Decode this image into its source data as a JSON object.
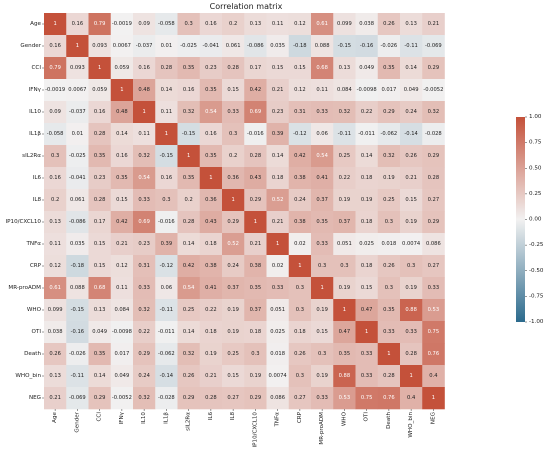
{
  "chart_data": {
    "type": "heatmap",
    "title": "Correlation matrix",
    "labels": [
      "Age",
      "Gender",
      "CCI",
      "IFNγ",
      "IL10",
      "IL1β",
      "sIL2Rα",
      "IL6",
      "IL8",
      "IP10/CXCL10",
      "TNFα",
      "CRP",
      "MR-proADM",
      "WHO",
      "OTI",
      "Death",
      "WHO_bin",
      "NEG"
    ],
    "matrix": [
      [
        "1",
        "0.16",
        "0.79",
        "-0.0019",
        "0.09",
        "-0.058",
        "0.3",
        "0.16",
        "0.2",
        "0.13",
        "0.11",
        "0.12",
        "0.61",
        "0.099",
        "0.038",
        "0.26",
        "0.13",
        "0.21"
      ],
      [
        "0.16",
        "1",
        "0.093",
        "0.0067",
        "-0.037",
        "0.01",
        "-0.025",
        "-0.041",
        "0.061",
        "-0.086",
        "0.035",
        "-0.18",
        "0.088",
        "-0.15",
        "-0.16",
        "-0.026",
        "-0.11",
        "-0.069"
      ],
      [
        "0.79",
        "0.093",
        "1",
        "0.059",
        "0.16",
        "0.28",
        "0.35",
        "0.23",
        "0.28",
        "0.17",
        "0.15",
        "0.15",
        "0.68",
        "0.13",
        "0.049",
        "0.35",
        "0.14",
        "0.29"
      ],
      [
        "-0.0019",
        "0.0067",
        "0.059",
        "1",
        "0.48",
        "0.14",
        "0.16",
        "0.35",
        "0.15",
        "0.42",
        "0.21",
        "0.12",
        "0.11",
        "0.084",
        "-0.0098",
        "0.017",
        "0.049",
        "-0.0052"
      ],
      [
        "0.09",
        "-0.037",
        "0.16",
        "0.48",
        "1",
        "0.11",
        "0.32",
        "0.54",
        "0.33",
        "0.69",
        "0.23",
        "0.31",
        "0.33",
        "0.32",
        "0.22",
        "0.29",
        "0.24",
        "0.32"
      ],
      [
        "-0.058",
        "0.01",
        "0.28",
        "0.14",
        "0.11",
        "1",
        "-0.15",
        "0.16",
        "0.3",
        "-0.016",
        "0.39",
        "-0.12",
        "0.06",
        "-0.11",
        "-0.011",
        "-0.062",
        "-0.14",
        "-0.028"
      ],
      [
        "0.3",
        "-0.025",
        "0.35",
        "0.16",
        "0.32",
        "-0.15",
        "1",
        "0.35",
        "0.2",
        "0.28",
        "0.14",
        "0.42",
        "0.54",
        "0.25",
        "0.14",
        "0.32",
        "0.26",
        "0.29"
      ],
      [
        "0.16",
        "-0.041",
        "0.23",
        "0.35",
        "0.54",
        "0.16",
        "0.35",
        "1",
        "0.36",
        "0.43",
        "0.18",
        "0.38",
        "0.41",
        "0.22",
        "0.18",
        "0.19",
        "0.21",
        "0.28"
      ],
      [
        "0.2",
        "0.061",
        "0.28",
        "0.15",
        "0.33",
        "0.3",
        "0.2",
        "0.36",
        "1",
        "0.29",
        "0.52",
        "0.24",
        "0.37",
        "0.19",
        "0.19",
        "0.25",
        "0.15",
        "0.27"
      ],
      [
        "0.13",
        "-0.086",
        "0.17",
        "0.42",
        "0.69",
        "-0.016",
        "0.28",
        "0.43",
        "0.29",
        "1",
        "0.21",
        "0.38",
        "0.35",
        "0.37",
        "0.18",
        "0.3",
        "0.19",
        "0.29"
      ],
      [
        "0.11",
        "0.035",
        "0.15",
        "0.21",
        "0.23",
        "0.39",
        "0.14",
        "0.18",
        "0.52",
        "0.21",
        "1",
        "0.02",
        "0.33",
        "0.051",
        "0.025",
        "0.018",
        "0.0074",
        "0.086"
      ],
      [
        "0.12",
        "-0.18",
        "0.15",
        "0.12",
        "0.31",
        "-0.12",
        "0.42",
        "0.38",
        "0.24",
        "0.38",
        "0.02",
        "1",
        "0.3",
        "0.3",
        "0.18",
        "0.26",
        "0.3",
        "0.27"
      ],
      [
        "0.61",
        "0.088",
        "0.68",
        "0.11",
        "0.33",
        "0.06",
        "0.54",
        "0.41",
        "0.37",
        "0.35",
        "0.33",
        "0.3",
        "1",
        "0.19",
        "0.15",
        "0.3",
        "0.19",
        "0.33"
      ],
      [
        "0.099",
        "-0.15",
        "0.13",
        "0.084",
        "0.32",
        "-0.11",
        "0.25",
        "0.22",
        "0.19",
        "0.37",
        "0.051",
        "0.3",
        "0.19",
        "1",
        "0.47",
        "0.35",
        "0.88",
        "0.53"
      ],
      [
        "0.038",
        "-0.16",
        "0.049",
        "-0.0098",
        "0.22",
        "-0.011",
        "0.14",
        "0.18",
        "0.19",
        "0.18",
        "0.025",
        "0.18",
        "0.15",
        "0.47",
        "1",
        "0.33",
        "0.33",
        "0.75"
      ],
      [
        "0.26",
        "-0.026",
        "0.35",
        "0.017",
        "0.29",
        "-0.062",
        "0.32",
        "0.19",
        "0.25",
        "0.3",
        "0.018",
        "0.26",
        "0.3",
        "0.35",
        "0.33",
        "1",
        "0.28",
        "0.76"
      ],
      [
        "0.13",
        "-0.11",
        "0.14",
        "0.049",
        "0.24",
        "-0.14",
        "0.26",
        "0.21",
        "0.15",
        "0.19",
        "0.0074",
        "0.3",
        "0.19",
        "0.88",
        "0.33",
        "0.28",
        "1",
        "0.4"
      ],
      [
        "0.21",
        "-0.069",
        "0.29",
        "-0.0052",
        "0.32",
        "-0.028",
        "0.29",
        "0.28",
        "0.27",
        "0.29",
        "0.086",
        "0.27",
        "0.33",
        "0.53",
        "0.75",
        "0.76",
        "0.4",
        "1"
      ]
    ],
    "colorbar": {
      "ticks": [
        "1.00",
        "0.75",
        "0.50",
        "0.25",
        "0.00",
        "-0.25",
        "-0.50",
        "-0.75",
        "-1.00"
      ],
      "range": [
        -1,
        1
      ],
      "colors": {
        "negative": "#2b6a8d",
        "neutral": "#f2f1f1",
        "positive": "#c4513a"
      }
    }
  }
}
